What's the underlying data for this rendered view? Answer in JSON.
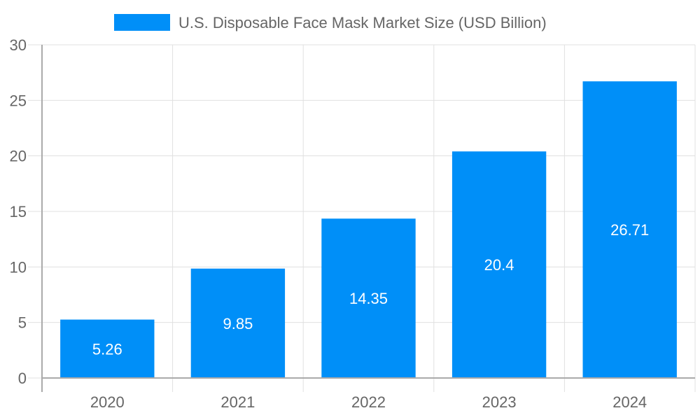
{
  "chart_data": {
    "type": "bar",
    "categories": [
      "2020",
      "2021",
      "2022",
      "2023",
      "2024"
    ],
    "series": [
      {
        "name": "U.S. Disposable Face Mask Market Size (USD Billion)",
        "values": [
          5.26,
          9.85,
          14.35,
          20.4,
          26.71
        ],
        "color": "#008ff8"
      }
    ],
    "data_labels": [
      "5.26",
      "9.85",
      "14.35",
      "20.4",
      "26.71"
    ],
    "ylim": [
      0,
      30
    ],
    "yticks": [
      "0",
      "5",
      "10",
      "15",
      "20",
      "25",
      "30"
    ],
    "grid": true,
    "legend_position": "top"
  }
}
